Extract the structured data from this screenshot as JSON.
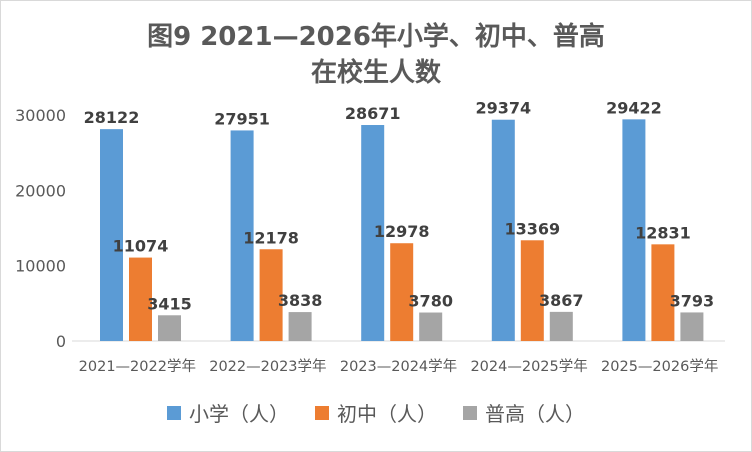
{
  "chart_data": {
    "type": "bar",
    "title_line1": "图9  2021—2026年小学、初中、普高",
    "title_line2": "在校生人数",
    "categories": [
      "2021—2022学年",
      "2022—2023学年",
      "2023—2024学年",
      "2024—2025学年",
      "2025—2026学年"
    ],
    "series": [
      {
        "name": "小学（人）",
        "color": "#5b9bd5",
        "values": [
          28122,
          27951,
          28671,
          29374,
          29422
        ]
      },
      {
        "name": "初中（人）",
        "color": "#ed7d31",
        "values": [
          11074,
          12178,
          12978,
          13369,
          12831
        ]
      },
      {
        "name": "普高（人）",
        "color": "#a5a5a5",
        "values": [
          3415,
          3838,
          3780,
          3867,
          3793
        ]
      }
    ],
    "ylim": [
      0,
      30000
    ],
    "yticks": [
      0,
      10000,
      20000,
      30000
    ],
    "grid": false,
    "legend": "bottom"
  }
}
